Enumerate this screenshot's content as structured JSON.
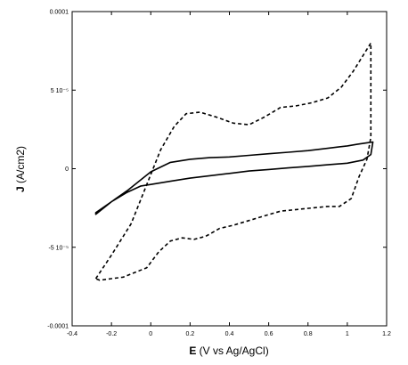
{
  "chart_data": {
    "type": "line",
    "title": "",
    "xlabel_bold": "E",
    "xlabel_rest": " (V vs Ag/AgCl)",
    "ylabel_bold": "J",
    "ylabel_rest": " (A/cm2)",
    "xlim": [
      -0.4,
      1.2
    ],
    "ylim": [
      -0.0001,
      0.0001
    ],
    "grid": false,
    "legend": "none",
    "x_ticks": [
      {
        "value": -0.4,
        "label": "-0.4"
      },
      {
        "value": -0.2,
        "label": "-0.2"
      },
      {
        "value": 0,
        "label": "0"
      },
      {
        "value": 0.2,
        "label": "0.2"
      },
      {
        "value": 0.4,
        "label": "0.4"
      },
      {
        "value": 0.6,
        "label": "0.6"
      },
      {
        "value": 0.8,
        "label": "0.8"
      },
      {
        "value": 1.0,
        "label": "1"
      },
      {
        "value": 1.2,
        "label": "1.2"
      }
    ],
    "y_ticks": [
      {
        "value": 0.0001,
        "label": "0.0001"
      },
      {
        "value": 5e-05,
        "label": "5 10⁻⁵"
      },
      {
        "value": 0,
        "label": "0"
      },
      {
        "value": -5e-05,
        "label": "-5 10⁻⁵"
      },
      {
        "value": -0.0001,
        "label": "-0.0001"
      }
    ],
    "series": [
      {
        "style": "dashed",
        "color": "#000000",
        "x": [
          -0.28,
          -0.2,
          -0.1,
          -0.02,
          0.05,
          0.12,
          0.18,
          0.25,
          0.33,
          0.42,
          0.5,
          0.58,
          0.66,
          0.74,
          0.82,
          0.9,
          0.97,
          1.03,
          1.08,
          1.12,
          1.12,
          1.1,
          1.06,
          1.02,
          0.96,
          0.9,
          0.82,
          0.74,
          0.66,
          0.58,
          0.5,
          0.42,
          0.35,
          0.28,
          0.22,
          0.16,
          0.1,
          0.04,
          -0.02,
          -0.08,
          -0.14,
          -0.2,
          -0.26,
          -0.28
        ],
        "y": [
          -7e-05,
          -5.5e-05,
          -3.5e-05,
          -1e-05,
          1.2e-05,
          2.7e-05,
          3.5e-05,
          3.6e-05,
          3.3e-05,
          2.9e-05,
          2.8e-05,
          3.3e-05,
          3.9e-05,
          4e-05,
          4.2e-05,
          4.5e-05,
          5.2e-05,
          6.2e-05,
          7.2e-05,
          8e-05,
          2e-05,
          6e-06,
          -5e-06,
          -1.9e-05,
          -2.4e-05,
          -2.4e-05,
          -2.5e-05,
          -2.6e-05,
          -2.7e-05,
          -3e-05,
          -3.3e-05,
          -3.6e-05,
          -3.8e-05,
          -4.3e-05,
          -4.5e-05,
          -4.4e-05,
          -4.6e-05,
          -5.3e-05,
          -6.3e-05,
          -6.6e-05,
          -6.9e-05,
          -7e-05,
          -7.1e-05,
          -7e-05
        ]
      },
      {
        "style": "solid",
        "color": "#000000",
        "x": [
          -0.28,
          -0.2,
          -0.12,
          -0.05,
          0.0,
          0.1,
          0.2,
          0.3,
          0.4,
          0.5,
          0.6,
          0.7,
          0.8,
          0.9,
          1.0,
          1.05,
          1.1,
          1.13,
          1.12,
          1.08,
          1.0,
          0.9,
          0.8,
          0.7,
          0.6,
          0.5,
          0.4,
          0.3,
          0.2,
          0.1,
          0.0,
          -0.05,
          -0.12,
          -0.2,
          -0.28
        ],
        "y": [
          -2.8e-05,
          -2.1e-05,
          -1.4e-05,
          -7e-06,
          -2e-06,
          4e-06,
          6e-06,
          7e-06,
          7.5e-06,
          8.5e-06,
          9.5e-06,
          1.05e-05,
          1.15e-05,
          1.3e-05,
          1.45e-05,
          1.55e-05,
          1.65e-05,
          1.7e-05,
          9e-06,
          5.5e-06,
          3.5e-06,
          2.5e-06,
          1.5e-06,
          5e-07,
          -5e-07,
          -1.5e-06,
          -3e-06,
          -4.5e-06,
          -6e-06,
          -8e-06,
          -1e-05,
          -1.1e-05,
          -1.5e-05,
          -2.1e-05,
          -2.9e-05
        ]
      }
    ]
  }
}
